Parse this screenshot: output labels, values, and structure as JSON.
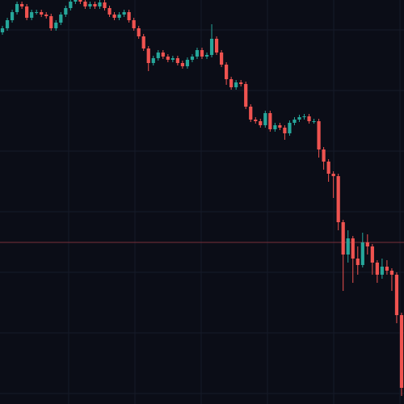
{
  "chart_data": {
    "type": "candlestick",
    "ylim": [
      0,
      500
    ],
    "grid": true,
    "up_color": "#26a69a",
    "down_color": "#ef5350",
    "price_line": 200,
    "price_line_color": "#7a2f3a",
    "open": [
      460,
      465,
      475,
      485,
      495,
      492,
      478,
      485,
      485,
      482,
      480,
      465,
      472,
      482,
      490,
      498,
      500,
      498,
      492,
      495,
      492,
      497,
      490,
      482,
      478,
      482,
      485,
      475,
      465,
      455,
      440,
      422,
      428,
      435,
      430,
      426,
      428,
      422,
      418,
      426,
      430,
      438,
      430,
      432,
      452,
      435,
      420,
      402,
      392,
      398,
      396,
      368,
      352,
      350,
      345,
      360,
      340,
      345,
      342,
      335,
      348,
      352,
      355,
      356,
      350,
      350,
      315,
      300,
      285,
      282,
      225,
      185,
      205,
      180,
      172,
      200,
      195,
      175,
      160,
      170,
      165,
      160,
      110
    ],
    "high": [
      468,
      478,
      488,
      498,
      498,
      495,
      488,
      488,
      488,
      485,
      483,
      475,
      485,
      493,
      500,
      500,
      500,
      500,
      498,
      498,
      500,
      500,
      493,
      485,
      485,
      488,
      488,
      478,
      468,
      458,
      443,
      431,
      438,
      438,
      433,
      431,
      431,
      425,
      429,
      433,
      441,
      441,
      435,
      470,
      455,
      438,
      423,
      405,
      401,
      401,
      399,
      371,
      355,
      353,
      363,
      363,
      348,
      348,
      345,
      351,
      355,
      358,
      359,
      359,
      353,
      353,
      318,
      303,
      288,
      285,
      228,
      215,
      208,
      195,
      212,
      210,
      198,
      178,
      180,
      178,
      168,
      163,
      113
    ],
    "low": [
      457,
      462,
      472,
      482,
      489,
      475,
      475,
      482,
      479,
      477,
      462,
      462,
      469,
      479,
      487,
      495,
      495,
      489,
      489,
      489,
      489,
      487,
      479,
      475,
      475,
      479,
      472,
      462,
      452,
      437,
      412,
      419,
      425,
      427,
      423,
      423,
      419,
      415,
      415,
      423,
      427,
      427,
      427,
      429,
      432,
      417,
      395,
      389,
      389,
      393,
      365,
      349,
      347,
      342,
      342,
      337,
      337,
      339,
      327,
      332,
      345,
      349,
      352,
      347,
      347,
      305,
      290,
      275,
      255,
      215,
      140,
      175,
      150,
      160,
      169,
      185,
      160,
      150,
      155,
      160,
      140,
      100,
      10
    ],
    "close": [
      465,
      475,
      485,
      495,
      492,
      478,
      485,
      485,
      482,
      480,
      465,
      472,
      482,
      490,
      498,
      500,
      498,
      492,
      495,
      492,
      497,
      490,
      482,
      478,
      482,
      485,
      475,
      465,
      455,
      440,
      422,
      428,
      435,
      430,
      426,
      428,
      422,
      418,
      426,
      430,
      438,
      430,
      432,
      452,
      435,
      420,
      402,
      392,
      398,
      396,
      368,
      352,
      350,
      345,
      360,
      340,
      345,
      342,
      335,
      348,
      352,
      355,
      356,
      350,
      350,
      315,
      300,
      285,
      282,
      225,
      185,
      205,
      180,
      172,
      200,
      195,
      175,
      160,
      170,
      165,
      160,
      110,
      20
    ]
  }
}
